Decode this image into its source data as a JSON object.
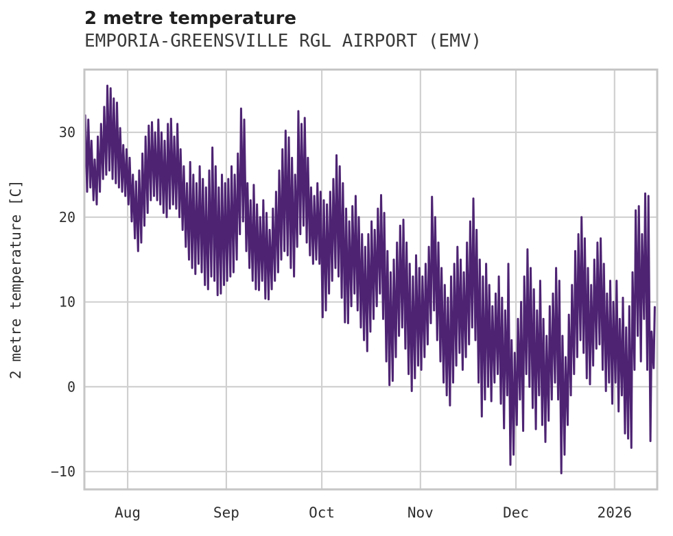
{
  "figure": {
    "title": "2 metre temperature",
    "subtitle": "EMPORIA-GREENSVILLE RGL AIRPORT (EMV)"
  },
  "chart_data": {
    "type": "line",
    "title": "2 metre temperature",
    "subtitle": "EMPORIA-GREENSVILLE RGL AIRPORT (EMV)",
    "xlabel": "",
    "ylabel": "2 metre temperature [C]",
    "grid": true,
    "legend": "none",
    "line_color": "#4d2372",
    "grid_color": "#d0d0d0",
    "axis_border_color": "#c6c6c6",
    "tick_text_color": "#2e2e2e",
    "ylim": [
      -12.1,
      37.4
    ],
    "xlim_days": [
      0.4,
      180.4
    ],
    "yticks": [
      {
        "label": "30",
        "value": 30
      },
      {
        "label": "20",
        "value": 20
      },
      {
        "label": "10",
        "value": 10
      },
      {
        "label": "0",
        "value": 0
      },
      {
        "label": "−10",
        "value": -10
      }
    ],
    "xticks": [
      {
        "label": "Aug",
        "day": 14
      },
      {
        "label": "Sep",
        "day": 45
      },
      {
        "label": "Oct",
        "day": 75
      },
      {
        "label": "Nov",
        "day": 106
      },
      {
        "label": "Dec",
        "day": 136
      },
      {
        "label": "2026",
        "day": 167
      }
    ],
    "series": [
      {
        "name": "2 metre temperature",
        "unit": "C",
        "x_start_date": "2025-07-18",
        "x_end_date": "2026-01-13",
        "sampling": "daily minimum and maximum of the hourly trace, day index from start date",
        "daily_min": [
          22.5,
          23,
          23.5,
          22,
          21.5,
          23,
          24.5,
          25,
          25.5,
          24.5,
          24,
          23.5,
          23,
          22.5,
          21.5,
          19.5,
          17.5,
          16,
          17,
          19,
          20.5,
          22,
          22.5,
          22,
          21.5,
          20.5,
          20,
          21,
          21.5,
          21,
          20,
          18.5,
          16.5,
          15,
          14,
          13.3,
          14.5,
          13.5,
          12,
          11.5,
          13,
          12.5,
          10.8,
          11,
          12,
          12.5,
          13,
          13.5,
          15,
          18,
          19.5,
          16,
          14,
          12.5,
          11.5,
          11.4,
          12.5,
          10.4,
          10.3,
          11.5,
          12.5,
          13.5,
          15,
          16,
          15.5,
          14,
          13,
          16.5,
          18,
          19,
          17,
          15.5,
          14.5,
          15,
          14.5,
          8.2,
          9,
          11,
          12.5,
          14,
          13,
          10.5,
          7.6,
          7.5,
          9.5,
          11,
          9,
          7,
          5.5,
          4.2,
          6.5,
          8,
          9.5,
          11,
          8,
          3,
          0.2,
          0.7,
          3.5,
          6,
          7,
          4.5,
          1.5,
          -0.5,
          1,
          2.5,
          2,
          3.5,
          5,
          7.5,
          9,
          5.5,
          3,
          0.5,
          -1,
          -2.2,
          0.5,
          2.5,
          4,
          2,
          3.5,
          5,
          7,
          5.5,
          0.5,
          -3.5,
          -1.5,
          0,
          -1.7,
          0.5,
          1.5,
          -2,
          -4.9,
          -1,
          -9.2,
          -8,
          -4.5,
          -1.5,
          -5.2,
          1.5,
          0,
          -2.5,
          -5,
          -1,
          -4.5,
          -6.5,
          -4,
          -1.5,
          0.5,
          -1.5,
          -10.2,
          -8,
          -4.5,
          -1,
          1.5,
          3.5,
          5.5,
          4,
          1,
          0.3,
          2.5,
          4.5,
          5,
          2,
          -0.5,
          0.5,
          -2,
          0.5,
          -2.9,
          -1,
          -5.5,
          -6.1,
          -7.2,
          2,
          6,
          3,
          8,
          2,
          -6.4,
          2.2
        ],
        "daily_max": [
          32,
          31.5,
          29,
          26.8,
          29.5,
          31,
          33,
          35.5,
          35.2,
          34,
          33.5,
          30.5,
          28.5,
          28,
          27,
          25,
          24.2,
          25.5,
          27.5,
          29.5,
          30.8,
          31.2,
          30,
          31.5,
          30,
          29,
          31,
          31.6,
          29.5,
          31,
          28,
          26,
          24,
          26.5,
          25,
          24,
          26,
          24.5,
          23.5,
          25.5,
          28.2,
          26,
          23.5,
          25,
          24,
          24.5,
          26,
          25,
          27.5,
          32.8,
          31.5,
          24,
          22,
          23.8,
          21.5,
          20,
          22,
          20.5,
          18.5,
          21,
          23,
          25.5,
          28,
          30.2,
          29.4,
          27,
          25,
          32.5,
          31,
          31.7,
          27,
          23.5,
          22.5,
          24,
          23,
          22,
          21.5,
          23,
          24.5,
          27.3,
          26,
          24,
          21,
          19.5,
          21.3,
          22.5,
          20,
          18,
          16.5,
          18,
          19.5,
          18.5,
          21,
          22.6,
          20.5,
          16,
          13.5,
          15,
          17,
          19,
          19.7,
          17,
          14.5,
          13,
          15.5,
          14,
          13,
          14.5,
          16.5,
          22.4,
          20,
          17,
          14,
          12,
          10.5,
          13,
          14.5,
          16.5,
          15,
          13.5,
          17,
          19.5,
          22.2,
          18.5,
          15,
          13,
          14.5,
          12,
          9.5,
          11,
          13,
          10.5,
          9,
          14.5,
          5.5,
          4,
          8,
          10,
          13,
          16.2,
          14,
          11.5,
          9,
          12.5,
          8,
          6,
          9.5,
          11,
          14,
          12.5,
          6,
          3.5,
          8.5,
          12,
          16,
          18,
          20,
          17.5,
          14,
          12,
          15,
          17,
          17.5,
          14.5,
          11,
          12.5,
          10,
          12.5,
          8,
          10.5,
          7,
          9.5,
          13.5,
          20.8,
          21.3,
          18,
          22.8,
          22.5,
          6.5,
          9.4
        ]
      }
    ]
  }
}
